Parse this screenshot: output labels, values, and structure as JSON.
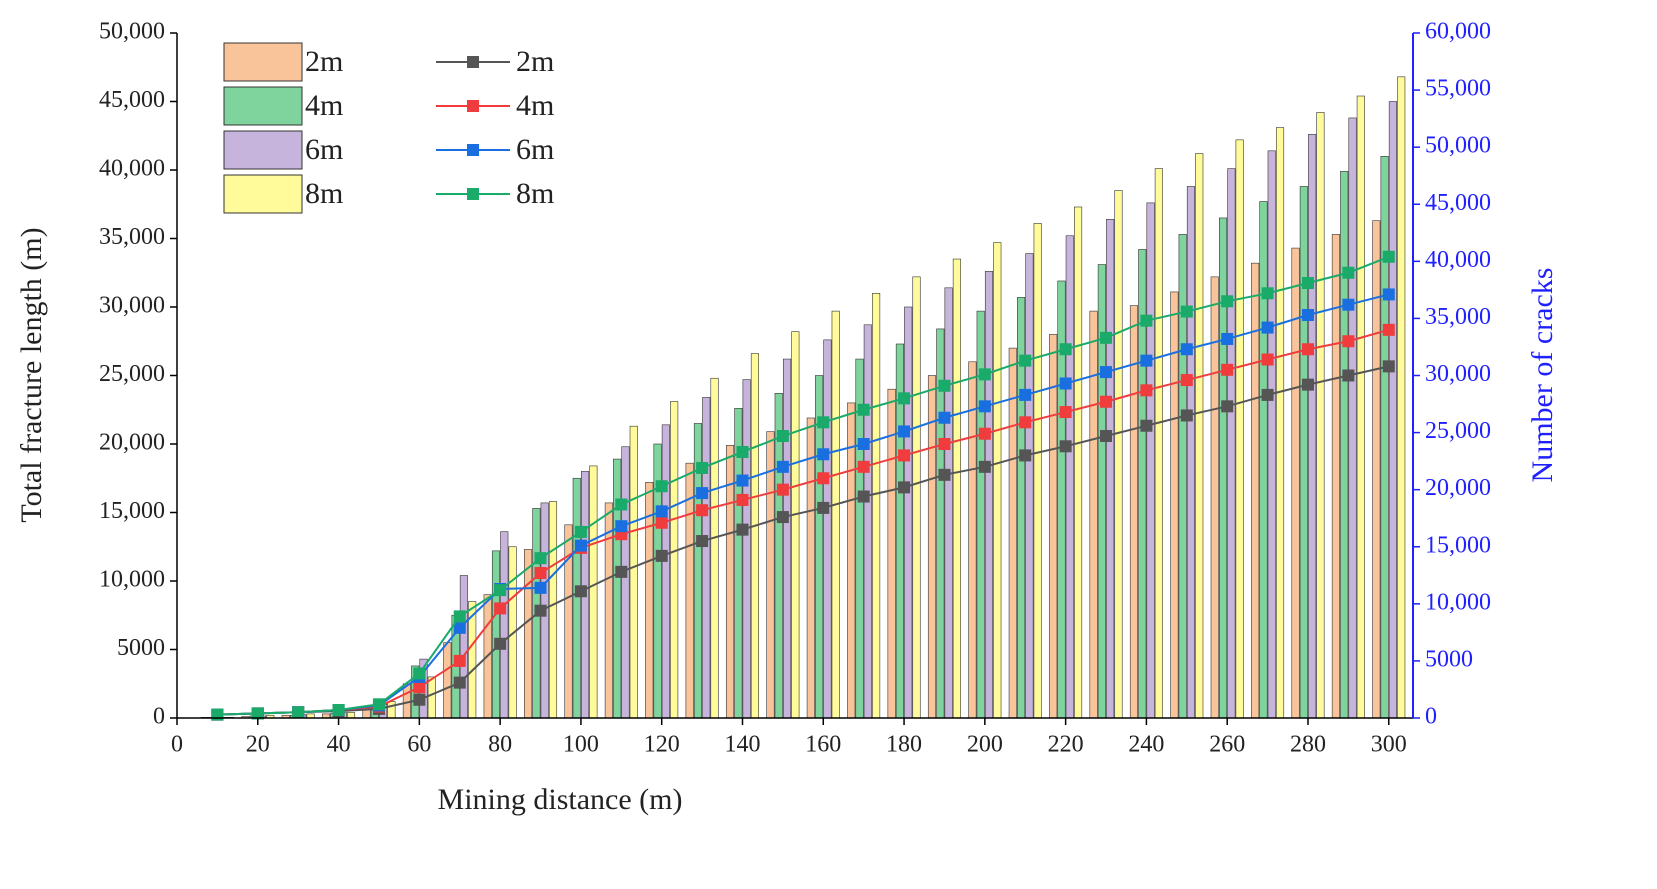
{
  "chart_data": {
    "type": "bar",
    "xlabel": "Mining distance (m)",
    "ylabel": "Total fracture length (m)",
    "y2label": "Number of cracks",
    "x": [
      10,
      20,
      30,
      40,
      50,
      60,
      70,
      80,
      90,
      100,
      110,
      120,
      130,
      140,
      150,
      160,
      170,
      180,
      190,
      200,
      210,
      220,
      230,
      240,
      250,
      260,
      270,
      280,
      290,
      300
    ],
    "xlim": [
      0,
      306
    ],
    "xticks": [
      0,
      20,
      40,
      60,
      80,
      100,
      120,
      140,
      160,
      180,
      200,
      220,
      240,
      260,
      280,
      300
    ],
    "ylim": [
      0,
      50000
    ],
    "yticks": [
      0,
      5000,
      {
        "value": 10000,
        "label": "10,000"
      },
      {
        "value": 15000,
        "label": "15,000"
      },
      {
        "value": 20000,
        "label": "20,000"
      },
      {
        "value": 25000,
        "label": "25,000"
      },
      {
        "value": 30000,
        "label": "30,000"
      },
      {
        "value": 35000,
        "label": "35,000"
      },
      {
        "value": 40000,
        "label": "40,000"
      },
      {
        "value": 45000,
        "label": "45,000"
      },
      {
        "value": 50000,
        "label": "50,000"
      }
    ],
    "y2lim": [
      0,
      60000
    ],
    "y2ticks": [
      0,
      5000,
      {
        "value": 10000,
        "label": "10,000"
      },
      {
        "value": 15000,
        "label": "15,000"
      },
      {
        "value": 20000,
        "label": "20,000"
      },
      {
        "value": 25000,
        "label": "25,000"
      },
      {
        "value": 30000,
        "label": "30,000"
      },
      {
        "value": 35000,
        "label": "35,000"
      },
      {
        "value": 40000,
        "label": "40,000"
      },
      {
        "value": 45000,
        "label": "45,000"
      },
      {
        "value": 50000,
        "label": "50,000"
      },
      {
        "value": 55000,
        "label": "55,000"
      },
      {
        "value": 60000,
        "label": "60,000"
      }
    ],
    "y2color": "#1f1fff",
    "legend": "upper left",
    "series": [
      {
        "name": "2m",
        "type": "bar",
        "color": "#f9c49a",
        "values": [
          50,
          100,
          200,
          300,
          800,
          2500,
          5500,
          9000,
          12300,
          14100,
          15700,
          17200,
          18600,
          19900,
          20900,
          21900,
          23000,
          24000,
          25000,
          26000,
          27000,
          28000,
          29700,
          30100,
          31100,
          32200,
          33200,
          34300,
          35300,
          36300
        ]
      },
      {
        "name": "4m",
        "type": "bar",
        "color": "#7fd39d",
        "values": [
          50,
          150,
          200,
          350,
          900,
          3800,
          7500,
          12200,
          15300,
          17500,
          18900,
          20000,
          21500,
          22600,
          23700,
          25000,
          26200,
          27300,
          28400,
          29700,
          30700,
          31900,
          33100,
          34200,
          35300,
          36500,
          37700,
          38800,
          39900,
          41000
        ]
      },
      {
        "name": "6m",
        "type": "bar",
        "color": "#c6b4dc",
        "values": [
          50,
          150,
          250,
          400,
          1000,
          4300,
          10400,
          13600,
          15700,
          18000,
          19800,
          21400,
          23400,
          24700,
          26200,
          27600,
          28700,
          30000,
          31400,
          32600,
          33900,
          35200,
          36400,
          37600,
          38800,
          40100,
          41400,
          42600,
          43800,
          45000
        ]
      },
      {
        "name": "8m",
        "type": "bar",
        "color": "#fffa9a",
        "values": [
          50,
          200,
          300,
          400,
          1200,
          3000,
          8500,
          12500,
          15800,
          18400,
          21300,
          23100,
          24800,
          26600,
          28200,
          29700,
          31000,
          32200,
          33500,
          34700,
          36100,
          37300,
          38500,
          40100,
          41200,
          42200,
          43100,
          44200,
          45400,
          46800
        ]
      },
      {
        "name": "2m",
        "type": "line",
        "axis": "y2",
        "color": "#555555",
        "values": [
          300,
          400,
          500,
          600,
          800,
          1600,
          3100,
          6500,
          9400,
          11100,
          12800,
          14200,
          15500,
          16500,
          17600,
          18400,
          19400,
          20200,
          21300,
          22000,
          23000,
          23800,
          24700,
          25600,
          26500,
          27300,
          28300,
          29200,
          30000,
          30800
        ]
      },
      {
        "name": "4m",
        "type": "line",
        "axis": "y2",
        "color": "#f03c3c",
        "values": [
          300,
          400,
          500,
          700,
          1000,
          2700,
          5000,
          9600,
          12700,
          14900,
          16100,
          17100,
          18200,
          19100,
          20000,
          21000,
          22000,
          23000,
          24000,
          24900,
          25900,
          26800,
          27700,
          28700,
          29600,
          30500,
          31400,
          32300,
          33000,
          34000
        ]
      },
      {
        "name": "6m",
        "type": "line",
        "axis": "y2",
        "color": "#1a6fe0",
        "values": [
          300,
          400,
          500,
          700,
          1100,
          3600,
          7900,
          11300,
          11400,
          15100,
          16800,
          18100,
          19700,
          20800,
          22000,
          23100,
          24000,
          25100,
          26300,
          27300,
          28300,
          29300,
          30300,
          31300,
          32300,
          33200,
          34200,
          35300,
          36200,
          37100
        ]
      },
      {
        "name": "8m",
        "type": "line",
        "axis": "y2",
        "color": "#1aaa6a",
        "values": [
          300,
          400,
          500,
          700,
          1200,
          3900,
          8900,
          11200,
          14000,
          16300,
          18700,
          20300,
          21900,
          23300,
          24700,
          25900,
          27000,
          28000,
          29100,
          30100,
          31300,
          32300,
          33300,
          34800,
          35600,
          36500,
          37200,
          38100,
          39000,
          40400
        ]
      }
    ]
  }
}
